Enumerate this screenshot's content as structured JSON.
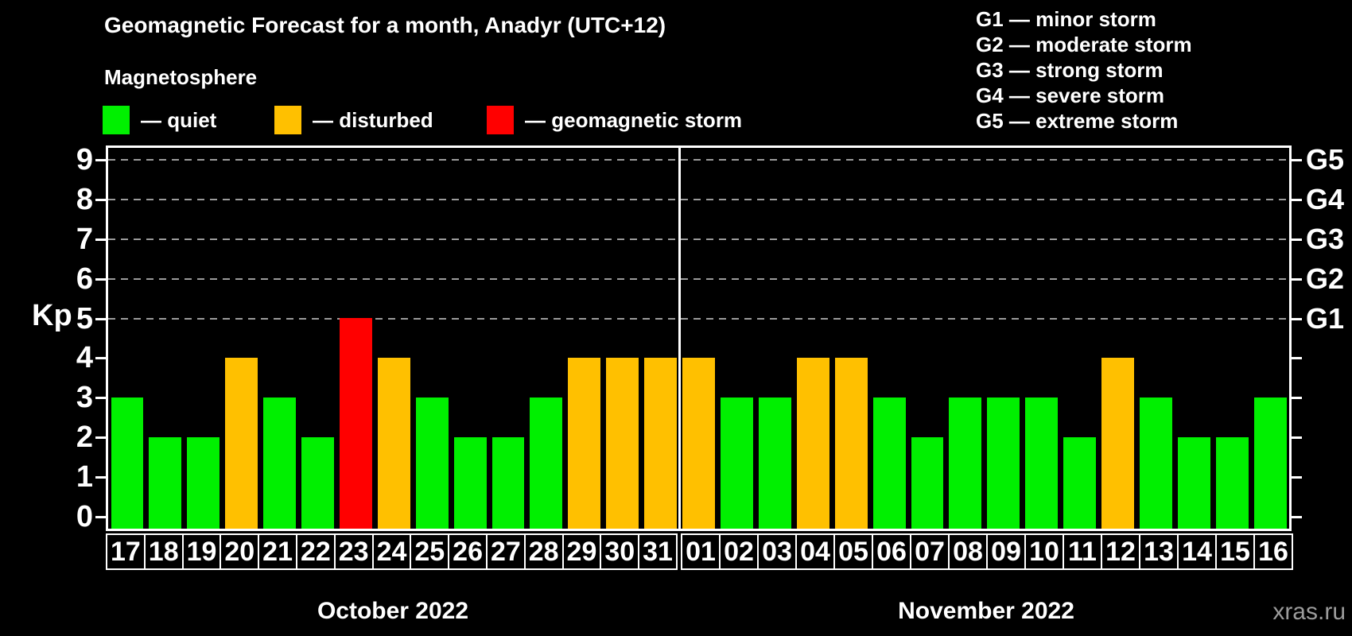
{
  "title": "Geomagnetic Forecast for a month, Anadyr (UTC+12)",
  "subtitle": "Magnetosphere",
  "legend": [
    {
      "key": "quiet",
      "label": "— quiet"
    },
    {
      "key": "disturbed",
      "label": "— disturbed"
    },
    {
      "key": "storm",
      "label": "— geomagnetic storm"
    }
  ],
  "g_legend": [
    "G1 — minor storm",
    "G2 — moderate storm",
    "G3 — strong storm",
    "G4 — severe storm",
    "G5 — extreme storm"
  ],
  "colors": {
    "quiet": "#00f000",
    "disturbed": "#ffc000",
    "storm": "#ff0000",
    "axis": "#ffffff",
    "grid": "#9b9b9b",
    "background": "#000000",
    "watermark": "#9c9c9c"
  },
  "y_axis": {
    "label": "Kp",
    "ticks": [
      0,
      1,
      2,
      3,
      4,
      5,
      6,
      7,
      8,
      9
    ]
  },
  "right_axis": {
    "labels": [
      {
        "text": "G1",
        "kp": 5
      },
      {
        "text": "G2",
        "kp": 6
      },
      {
        "text": "G3",
        "kp": 7
      },
      {
        "text": "G4",
        "kp": 8
      },
      {
        "text": "G5",
        "kp": 9
      }
    ]
  },
  "watermark": "xras.ru",
  "chart_data": {
    "type": "bar",
    "title": "Geomagnetic Forecast for a month, Anadyr (UTC+12)",
    "xlabel": "",
    "ylabel": "Kp",
    "ylim": [
      0,
      9
    ],
    "grid": "horizontal dashed lines at Kp 5,6,7,8,9 (G1–G5)",
    "legend_position": "top-left (condition colors), top-right (G storm scale)",
    "months": [
      {
        "label": "October 2022",
        "days": [
          {
            "day": "17",
            "kp": 3,
            "condition": "quiet"
          },
          {
            "day": "18",
            "kp": 2,
            "condition": "quiet"
          },
          {
            "day": "19",
            "kp": 2,
            "condition": "quiet"
          },
          {
            "day": "20",
            "kp": 4,
            "condition": "disturbed"
          },
          {
            "day": "21",
            "kp": 3,
            "condition": "quiet"
          },
          {
            "day": "22",
            "kp": 2,
            "condition": "quiet"
          },
          {
            "day": "23",
            "kp": 5,
            "condition": "storm"
          },
          {
            "day": "24",
            "kp": 4,
            "condition": "disturbed"
          },
          {
            "day": "25",
            "kp": 3,
            "condition": "quiet"
          },
          {
            "day": "26",
            "kp": 2,
            "condition": "quiet"
          },
          {
            "day": "27",
            "kp": 2,
            "condition": "quiet"
          },
          {
            "day": "28",
            "kp": 3,
            "condition": "quiet"
          },
          {
            "day": "29",
            "kp": 4,
            "condition": "disturbed"
          },
          {
            "day": "30",
            "kp": 4,
            "condition": "disturbed"
          },
          {
            "day": "31",
            "kp": 4,
            "condition": "disturbed"
          }
        ]
      },
      {
        "label": "November 2022",
        "days": [
          {
            "day": "01",
            "kp": 4,
            "condition": "disturbed"
          },
          {
            "day": "02",
            "kp": 3,
            "condition": "quiet"
          },
          {
            "day": "03",
            "kp": 3,
            "condition": "quiet"
          },
          {
            "day": "04",
            "kp": 4,
            "condition": "disturbed"
          },
          {
            "day": "05",
            "kp": 4,
            "condition": "disturbed"
          },
          {
            "day": "06",
            "kp": 3,
            "condition": "quiet"
          },
          {
            "day": "07",
            "kp": 2,
            "condition": "quiet"
          },
          {
            "day": "08",
            "kp": 3,
            "condition": "quiet"
          },
          {
            "day": "09",
            "kp": 3,
            "condition": "quiet"
          },
          {
            "day": "10",
            "kp": 3,
            "condition": "quiet"
          },
          {
            "day": "11",
            "kp": 2,
            "condition": "quiet"
          },
          {
            "day": "12",
            "kp": 4,
            "condition": "disturbed"
          },
          {
            "day": "13",
            "kp": 3,
            "condition": "quiet"
          },
          {
            "day": "14",
            "kp": 2,
            "condition": "quiet"
          },
          {
            "day": "15",
            "kp": 2,
            "condition": "quiet"
          },
          {
            "day": "16",
            "kp": 3,
            "condition": "quiet"
          }
        ]
      }
    ]
  }
}
